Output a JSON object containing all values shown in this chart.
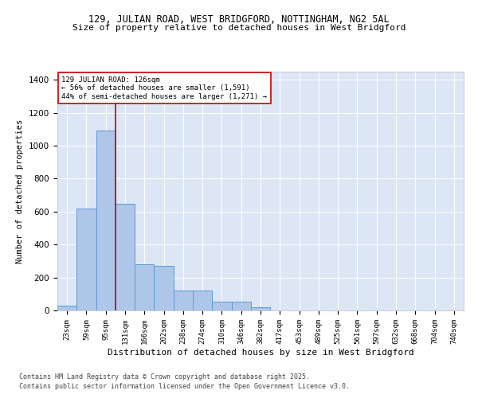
{
  "title_line1": "129, JULIAN ROAD, WEST BRIDGFORD, NOTTINGHAM, NG2 5AL",
  "title_line2": "Size of property relative to detached houses in West Bridgford",
  "xlabel": "Distribution of detached houses by size in West Bridgford",
  "ylabel": "Number of detached properties",
  "categories": [
    "23sqm",
    "59sqm",
    "95sqm",
    "131sqm",
    "166sqm",
    "202sqm",
    "238sqm",
    "274sqm",
    "310sqm",
    "346sqm",
    "382sqm",
    "417sqm",
    "453sqm",
    "489sqm",
    "525sqm",
    "561sqm",
    "597sqm",
    "632sqm",
    "668sqm",
    "704sqm",
    "740sqm"
  ],
  "values": [
    30,
    620,
    1090,
    650,
    280,
    270,
    120,
    120,
    55,
    55,
    20,
    0,
    0,
    0,
    0,
    0,
    0,
    0,
    0,
    0,
    0
  ],
  "bar_color": "#aec6e8",
  "bar_edge_color": "#5b9bd5",
  "background_color": "#dce6f5",
  "grid_color": "#ffffff",
  "vline_color": "#cc0000",
  "vline_x_index": 3,
  "annotation_text": "129 JULIAN ROAD: 126sqm\n← 56% of detached houses are smaller (1,591)\n44% of semi-detached houses are larger (1,271) →",
  "annotation_box_color": "#ffffff",
  "annotation_box_edge": "#cc0000",
  "ylim": [
    0,
    1450
  ],
  "yticks": [
    0,
    200,
    400,
    600,
    800,
    1000,
    1200,
    1400
  ],
  "footnote_line1": "Contains HM Land Registry data © Crown copyright and database right 2025.",
  "footnote_line2": "Contains public sector information licensed under the Open Government Licence v3.0."
}
